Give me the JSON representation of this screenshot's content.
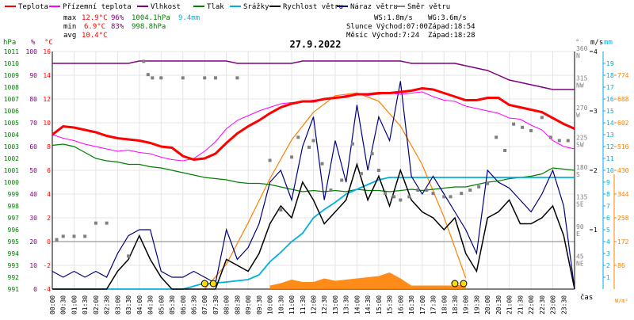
{
  "chart_data": {
    "type": "line",
    "title": "27.9.2022",
    "x": {
      "label": "čas",
      "ticks": [
        "00:00",
        "00:30",
        "01:00",
        "01:30",
        "02:00",
        "02:30",
        "03:00",
        "03:30",
        "04:00",
        "04:30",
        "05:00",
        "05:30",
        "06:00",
        "06:30",
        "07:00",
        "07:30",
        "08:00",
        "08:30",
        "09:00",
        "09:30",
        "10:00",
        "10:30",
        "11:00",
        "11:30",
        "12:00",
        "12:30",
        "13:00",
        "13:30",
        "14:00",
        "14:30",
        "15:00",
        "15:30",
        "16:00",
        "16:30",
        "17:00",
        "17:30",
        "18:00",
        "18:30",
        "19:00",
        "19:30",
        "20:00",
        "20:30",
        "21:00",
        "21:30",
        "22:00",
        "22:30",
        "23:00",
        "23:30"
      ],
      "xlim": [
        0,
        24
      ]
    },
    "grid": true,
    "legend": [
      {
        "name": "Teplota",
        "color": "#ff0000"
      },
      {
        "name": "Přízemní teplota",
        "color": "#ff00ff"
      },
      {
        "name": "Vlhkost",
        "color": "#800080"
      },
      {
        "name": "Tlak",
        "color": "#008000"
      },
      {
        "name": "Srážky",
        "color": "#00b0e0"
      },
      {
        "name": "Rychlost větru",
        "color": "#000000"
      },
      {
        "name": "Náraz větru",
        "color": "#000080"
      },
      {
        "name": "Směr větru",
        "color": "#808080"
      }
    ],
    "stats": {
      "max": {
        "label": "max",
        "temp": "12.9°C",
        "hum": "96%",
        "press": "1004.1hPa",
        "rain": "9.4mm"
      },
      "min": {
        "label": "min",
        "temp": "6.9°C",
        "hum": "83%",
        "press": "998.8hPa"
      },
      "avg": {
        "label": "avg",
        "temp": "10.4°C"
      }
    },
    "info": {
      "ws": "WS:1.8m/s",
      "wg": "WG:3.6m/s",
      "sun": "Slunce Východ:07:00",
      "sun_set": "Západ:18:54",
      "moon": "Měsíc  Východ:7:24",
      "moon_set": "Západ:18:28"
    },
    "axes": {
      "hpa": {
        "title": "hPa",
        "range": [
          991,
          1011
        ],
        "ticks": [
          "991",
          "992",
          "993",
          "994",
          "995",
          "996",
          "997",
          "998",
          "999",
          "1000",
          "1001",
          "1002",
          "1003",
          "1004",
          "1005",
          "1006",
          "1007",
          "1008",
          "1009",
          "1010",
          "1011"
        ]
      },
      "pct": {
        "title": "%",
        "range": [
          0,
          100
        ],
        "ticks": [
          "0",
          "10",
          "20",
          "30",
          "40",
          "50",
          "60",
          "70",
          "80",
          "90",
          "100"
        ]
      },
      "temp": {
        "title": "°C",
        "range": [
          -4,
          16
        ],
        "ticks": [
          "-4",
          "-2",
          "0",
          "2",
          "4",
          "6",
          "8",
          "10",
          "12",
          "14",
          "16"
        ]
      },
      "dir": {
        "title": "°",
        "range": [
          0,
          360
        ],
        "ticks": [
          {
            "v": 45,
            "t": "45",
            "d": "NE"
          },
          {
            "v": 90,
            "t": "90",
            "d": "E"
          },
          {
            "v": 135,
            "t": "135",
            "d": "SE"
          },
          {
            "v": 180,
            "t": "180",
            "d": "S"
          },
          {
            "v": 225,
            "t": "225",
            "d": "SW"
          },
          {
            "v": 270,
            "t": "270",
            "d": "W"
          },
          {
            "v": 315,
            "t": "315",
            "d": "NW"
          },
          {
            "v": 360,
            "t": "360",
            "d": "N"
          }
        ]
      },
      "ms": {
        "title": "m/s",
        "range": [
          0,
          4
        ],
        "ticks": [
          "1",
          "2",
          "3",
          "4"
        ]
      },
      "mm": {
        "title": "mm",
        "range": [
          0,
          20
        ],
        "ticks": [
          "1",
          "2",
          "3",
          "4",
          "5",
          "6",
          "7",
          "8",
          "9",
          "10",
          "11",
          "12",
          "13",
          "14",
          "15",
          "16",
          "17",
          "18",
          "19"
        ]
      },
      "wm2": {
        "title": "W/m²",
        "range": [
          0,
          860
        ],
        "ticks": [
          "86",
          "172",
          "258",
          "344",
          "430",
          "516",
          "602",
          "688",
          "774"
        ]
      }
    },
    "series": [
      {
        "name": "Teplota",
        "axis": "temp",
        "color": "#ff0000",
        "x": [
          0,
          0.5,
          1,
          1.5,
          2,
          2.5,
          3,
          3.5,
          4,
          4.5,
          5,
          5.5,
          6,
          6.5,
          7,
          7.5,
          8,
          8.5,
          9,
          9.5,
          10,
          10.5,
          11,
          11.5,
          12,
          12.5,
          13,
          13.5,
          14,
          14.5,
          15,
          15.5,
          16,
          16.5,
          17,
          17.5,
          18,
          18.5,
          19,
          19.5,
          20,
          20.5,
          21,
          21.5,
          22,
          22.5,
          23,
          23.5,
          24
        ],
        "y": [
          9,
          9.7,
          9.6,
          9.4,
          9.2,
          8.9,
          8.7,
          8.6,
          8.5,
          8.3,
          8,
          7.9,
          7.2,
          6.9,
          7,
          7.4,
          8.3,
          9.1,
          9.7,
          10.2,
          10.8,
          11.3,
          11.6,
          11.8,
          11.8,
          12,
          12.1,
          12.2,
          12.4,
          12.4,
          12.5,
          12.5,
          12.6,
          12.7,
          12.9,
          12.8,
          12.5,
          12.2,
          11.9,
          11.9,
          12.1,
          12.1,
          11.5,
          11.3,
          11.1,
          10.9,
          10.4,
          9.9,
          9.5
        ]
      },
      {
        "name": "Přízemní teplota",
        "axis": "temp",
        "color": "#ff00ff",
        "x": [
          0,
          0.5,
          1,
          1.5,
          2,
          2.5,
          3,
          3.5,
          4,
          4.5,
          5,
          5.5,
          6,
          6.5,
          7,
          7.5,
          8,
          8.5,
          9,
          9.5,
          10,
          10.5,
          11,
          11.5,
          12,
          12.5,
          13,
          13.5,
          14,
          14.5,
          15,
          15.5,
          16,
          16.5,
          17,
          17.5,
          18,
          18.5,
          19,
          19.5,
          20,
          20.5,
          21,
          21.5,
          22,
          22.5,
          23,
          23.5,
          24
        ],
        "y": [
          9,
          8.7,
          8.5,
          8.2,
          8,
          7.8,
          7.6,
          7.7,
          7.5,
          7.4,
          7.1,
          6.9,
          6.8,
          7,
          7.6,
          8.4,
          9.5,
          10.2,
          10.6,
          11,
          11.3,
          11.6,
          11.7,
          11.8,
          11.9,
          12,
          12.1,
          12.3,
          12.4,
          12.3,
          12.4,
          12.5,
          12.4,
          12.5,
          12.6,
          12.2,
          11.9,
          11.8,
          11.4,
          11.2,
          11,
          10.8,
          10.4,
          10.3,
          9.8,
          9.4,
          8.5,
          8,
          7.8
        ]
      },
      {
        "name": "Vlhkost",
        "axis": "pct",
        "color": "#800080",
        "x": [
          0,
          0.5,
          1,
          1.5,
          2,
          2.5,
          3,
          3.5,
          4,
          4.5,
          5,
          5.5,
          6,
          6.5,
          7,
          7.5,
          8,
          8.5,
          9,
          9.5,
          10,
          10.5,
          11,
          11.5,
          12,
          12.5,
          13,
          13.5,
          14,
          14.5,
          15,
          15.5,
          16,
          16.5,
          17,
          17.5,
          18,
          18.5,
          19,
          19.5,
          20,
          20.5,
          21,
          21.5,
          22,
          22.5,
          23,
          23.5,
          24
        ],
        "y": [
          95,
          95,
          95,
          95,
          95,
          95,
          95,
          95,
          96,
          96,
          96,
          96,
          96,
          96,
          96,
          96,
          96,
          95,
          95,
          95,
          95,
          95,
          95,
          96,
          96,
          96,
          96,
          96,
          96,
          96,
          96,
          96,
          96,
          95,
          95,
          95,
          95,
          95,
          94,
          93,
          92,
          90,
          88,
          87,
          86,
          85,
          84,
          84,
          84
        ]
      },
      {
        "name": "Tlak",
        "axis": "hpa",
        "color": "#008000",
        "x": [
          0,
          0.5,
          1,
          1.5,
          2,
          2.5,
          3,
          3.5,
          4,
          4.5,
          5,
          5.5,
          6,
          6.5,
          7,
          7.5,
          8,
          8.5,
          9,
          9.5,
          10,
          10.5,
          11,
          11.5,
          12,
          12.5,
          13,
          13.5,
          14,
          14.5,
          15,
          15.5,
          16,
          16.5,
          17,
          17.5,
          18,
          18.5,
          19,
          19.5,
          20,
          20.5,
          21,
          21.5,
          22,
          22.5,
          23,
          23.5,
          24
        ],
        "y": [
          1003.1,
          1003.2,
          1003,
          1002.5,
          1002,
          1001.8,
          1001.7,
          1001.5,
          1001.5,
          1001.3,
          1001.2,
          1001,
          1000.8,
          1000.6,
          1000.4,
          1000.3,
          1000.2,
          1000,
          999.9,
          999.9,
          999.8,
          999.6,
          999.4,
          999.2,
          999.3,
          999.2,
          999.3,
          999.2,
          999.4,
          999.3,
          999.3,
          999.2,
          999.3,
          999.4,
          999.3,
          999.4,
          999.5,
          999.6,
          999.6,
          999.8,
          1000.0,
          1000.1,
          1000.3,
          1000.4,
          1000.5,
          1000.7,
          1001.2,
          1001.1,
          1001.0
        ]
      },
      {
        "name": "Srážky",
        "axis": "mm",
        "color": "#00b0e0",
        "x": [
          0,
          3,
          6,
          6.8,
          8,
          9,
          9.5,
          10,
          10.5,
          11,
          11.5,
          12,
          12.5,
          13,
          13.5,
          14,
          14.5,
          15,
          15.5,
          16,
          17,
          18,
          19,
          20,
          21,
          22,
          23,
          24
        ],
        "y": [
          0,
          0,
          0,
          0.4,
          0.6,
          0.8,
          1.2,
          2.3,
          3.1,
          4,
          4.7,
          6,
          6.7,
          7.3,
          8,
          8.4,
          8.8,
          9.2,
          9.4,
          9.4,
          9.4,
          9.4,
          9.4,
          9.4,
          9.4,
          9.4,
          9.4,
          9.4
        ]
      },
      {
        "name": "Rychlost větru",
        "axis": "ms",
        "color": "#000000",
        "x": [
          0,
          0.5,
          1,
          1.5,
          2,
          2.5,
          3,
          3.5,
          4,
          4.5,
          5,
          5.5,
          6,
          6.5,
          7,
          7.5,
          8,
          8.5,
          9,
          9.5,
          10,
          10.5,
          11,
          11.5,
          12,
          12.5,
          13,
          13.5,
          14,
          14.5,
          15,
          15.5,
          16,
          16.5,
          17,
          17.5,
          18,
          18.5,
          19,
          19.5,
          20,
          20.5,
          21,
          21.5,
          22,
          22.5,
          23,
          23.5,
          24
        ],
        "y": [
          0,
          0,
          0,
          0,
          0,
          0,
          0.3,
          0.5,
          0.9,
          0.5,
          0.2,
          0,
          0,
          0,
          0,
          0,
          0.5,
          0.4,
          0.3,
          0.6,
          1.1,
          1.4,
          1.2,
          1.8,
          1.5,
          1.1,
          1.3,
          1.5,
          2.1,
          1.5,
          1.9,
          1.4,
          2.0,
          1.5,
          1.3,
          1.2,
          1.0,
          1.2,
          0.6,
          0.3,
          1.2,
          1.3,
          1.5,
          1.1,
          1.1,
          1.2,
          1.4,
          0.9,
          0
        ]
      },
      {
        "name": "Náraz větru",
        "axis": "ms",
        "color": "#000080",
        "x": [
          0,
          0.5,
          1,
          1.5,
          2,
          2.5,
          3,
          3.5,
          4,
          4.5,
          5,
          5.5,
          6,
          6.5,
          7,
          7.5,
          8,
          8.5,
          9,
          9.5,
          10,
          10.5,
          11,
          11.5,
          12,
          12.5,
          13,
          13.5,
          14,
          14.5,
          15,
          15.5,
          16,
          16.5,
          17,
          17.5,
          18,
          18.5,
          19,
          19.5,
          20,
          20.5,
          21,
          21.5,
          22,
          22.5,
          23,
          23.5,
          24
        ],
        "y": [
          0.3,
          0.2,
          0.3,
          0.2,
          0.3,
          0.2,
          0.6,
          0.9,
          1.0,
          1.0,
          0.3,
          0.2,
          0.2,
          0.3,
          0.2,
          0.1,
          1.0,
          0.5,
          0.7,
          1.1,
          1.8,
          2.0,
          1.5,
          2.4,
          2.9,
          1.5,
          2.5,
          1.8,
          3.1,
          2.0,
          2.9,
          2.5,
          3.5,
          1.9,
          1.6,
          1.9,
          1.6,
          1.3,
          1.0,
          0.6,
          2.0,
          1.8,
          1.7,
          1.5,
          1.3,
          1.6,
          2.0,
          1.4,
          0
        ]
      },
      {
        "name": "Směr větru",
        "axis": "dir",
        "color": "#808080",
        "x": [
          0.2,
          0.5,
          1.0,
          1.5,
          2.0,
          2.5,
          3.5,
          4.2,
          4.4,
          4.6,
          5.0,
          6.0,
          7.0,
          7.5,
          8.5,
          10.0,
          10.5,
          11.0,
          11.3,
          11.8,
          12.0,
          12.4,
          12.8,
          13.3,
          13.8,
          14.2,
          14.7,
          15.0,
          15.3,
          15.7,
          16.0,
          16.4,
          16.8,
          17.2,
          17.5,
          18.0,
          18.3,
          18.8,
          19.2,
          19.6,
          20.0,
          20.4,
          20.8,
          21.2,
          21.6,
          22.0,
          22.5,
          22.9,
          23.3,
          23.7
        ],
        "y": [
          75,
          80,
          80,
          80,
          100,
          100,
          50,
          345,
          325,
          320,
          320,
          320,
          320,
          320,
          320,
          195,
          120,
          200,
          230,
          215,
          225,
          190,
          150,
          165,
          220,
          175,
          205,
          180,
          145,
          140,
          135,
          140,
          150,
          150,
          145,
          140,
          140,
          145,
          150,
          155,
          160,
          230,
          210,
          250,
          245,
          240,
          260,
          230,
          225,
          225
        ]
      },
      {
        "name": "Sluneční záření",
        "axis": "wm2",
        "color": "#ff8000",
        "x": [
          7,
          8,
          9,
          10,
          11,
          12,
          13,
          14,
          15,
          16,
          17,
          18,
          19
        ],
        "y": [
          0,
          90,
          240,
          400,
          540,
          640,
          700,
          710,
          680,
          590,
          450,
          260,
          40
        ]
      },
      {
        "name": "Srážky (intenzita)",
        "axis": "mm",
        "color": "#ff8000",
        "x": [
          10,
          10.5,
          11,
          11.5,
          12,
          12.5,
          13,
          13.5,
          14,
          14.5,
          15,
          15.5,
          16,
          16.5,
          18.5,
          19
        ],
        "y": [
          0.3,
          0.5,
          0.8,
          0.6,
          0.6,
          0.9,
          0.7,
          0.8,
          0.9,
          1.0,
          1.1,
          1.4,
          0.9,
          0.3,
          0.3,
          0.4
        ]
      }
    ]
  }
}
